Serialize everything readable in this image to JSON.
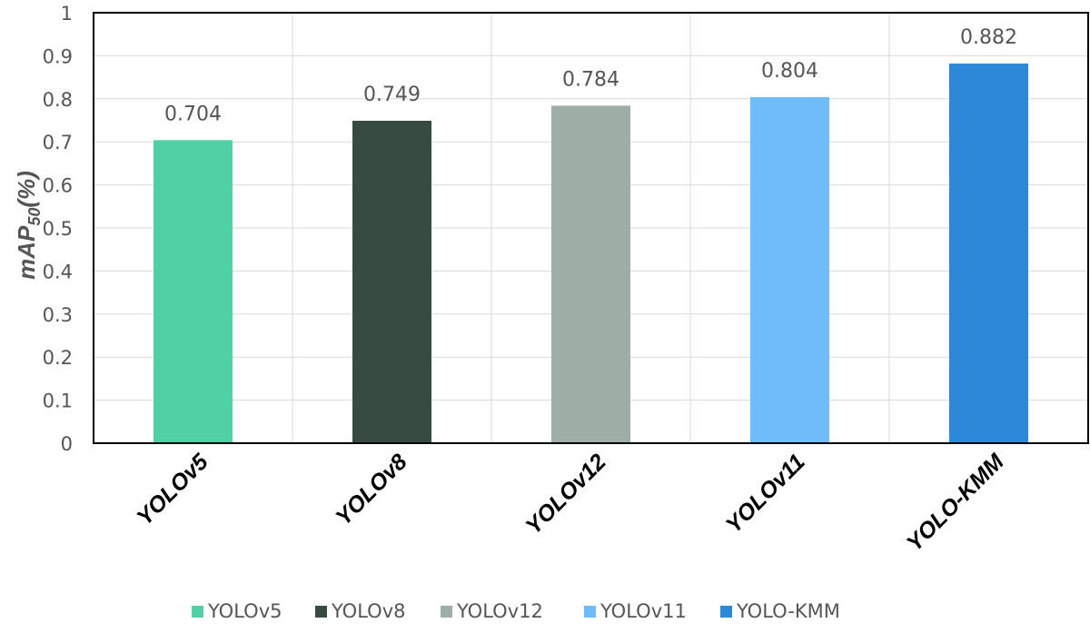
{
  "chart_data": {
    "type": "bar",
    "categories": [
      "YOLOv5",
      "YOLOv8",
      "YOLOv12",
      "YOLOv11",
      "YOLO-KMM"
    ],
    "values": [
      0.704,
      0.749,
      0.784,
      0.804,
      0.882
    ],
    "data_labels": [
      "0.704",
      "0.749",
      "0.784",
      "0.804",
      "0.882"
    ],
    "colors": [
      "#52d0a5",
      "#374b41",
      "#9caea6",
      "#70bcf8",
      "#2d89d8"
    ],
    "ylabel_main": "mAP",
    "ylabel_sub": "50",
    "ylabel_suffix": "(%)",
    "ylim": [
      0,
      1
    ],
    "yticks": [
      "0",
      "0.1",
      "0.2",
      "0.3",
      "0.4",
      "0.5",
      "0.6",
      "0.7",
      "0.8",
      "0.9",
      "1"
    ],
    "grid": true,
    "legend_position": "bottom",
    "legend": [
      "YOLOv5",
      "YOLOv8",
      "YOLOv12",
      "YOLOv11",
      "YOLO-KMM"
    ]
  }
}
